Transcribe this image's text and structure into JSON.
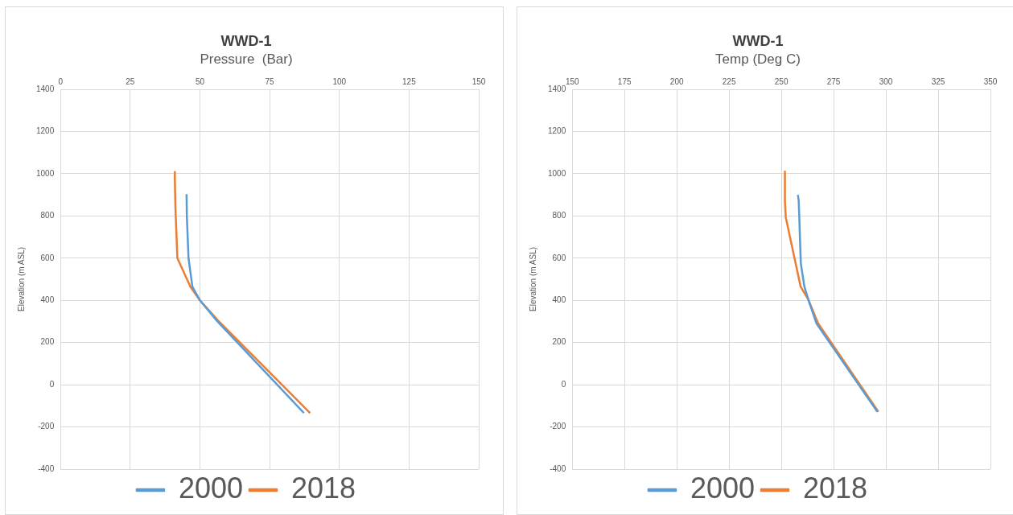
{
  "chart_data": [
    {
      "type": "line",
      "title": "WWD-1",
      "subtitle": "Pressure  (Bar)",
      "ylabel": "Elevation (m ASL)",
      "xlim": [
        0,
        150
      ],
      "xticks": [
        0,
        25,
        50,
        75,
        100,
        125,
        150
      ],
      "ylim": [
        -400,
        1400
      ],
      "yticks": [
        -400,
        -200,
        0,
        200,
        400,
        600,
        800,
        1000,
        1200,
        1400
      ],
      "grid": true,
      "legend": "bottom",
      "marker": "none",
      "line_style": "solid",
      "series": [
        {
          "name": "2000",
          "color": "#5b9bd5",
          "x": [
            45.2,
            45.3,
            45.9,
            47.3,
            50,
            56,
            87.3
          ],
          "values": [
            903,
            800,
            600,
            464,
            400,
            304,
            -134
          ]
        },
        {
          "name": "2018",
          "color": "#ed7d31",
          "x": [
            41,
            41,
            41.2,
            41.9,
            46.6,
            50,
            56.5,
            89.5
          ],
          "values": [
            1008,
            971,
            841,
            600,
            464,
            400,
            304,
            -134
          ]
        }
      ]
    },
    {
      "type": "line",
      "title": "WWD-1",
      "subtitle": "Temp (Deg C)",
      "ylabel": "Elevation (m ASL)",
      "xlim": [
        150,
        350
      ],
      "xticks": [
        150,
        175,
        200,
        225,
        250,
        275,
        300,
        325,
        350
      ],
      "ylim": [
        -400,
        1400
      ],
      "yticks": [
        -400,
        -200,
        0,
        200,
        400,
        600,
        800,
        1000,
        1200,
        1400
      ],
      "grid": true,
      "legend": "bottom",
      "marker": "none",
      "line_style": "solid",
      "series": [
        {
          "name": "2000",
          "color": "#5b9bd5",
          "x": [
            257.9,
            258.3,
            259.3,
            261,
            262.9,
            266.8,
            295.9
          ],
          "values": [
            900,
            872,
            575,
            465,
            403,
            290,
            -128
          ]
        },
        {
          "name": "2018",
          "color": "#ed7d31",
          "x": [
            251.7,
            251.7,
            252.1,
            259.2,
            262.9,
            267.6,
            296.4
          ],
          "values": [
            1010,
            872,
            794,
            465,
            403,
            290,
            -128
          ]
        }
      ]
    }
  ]
}
